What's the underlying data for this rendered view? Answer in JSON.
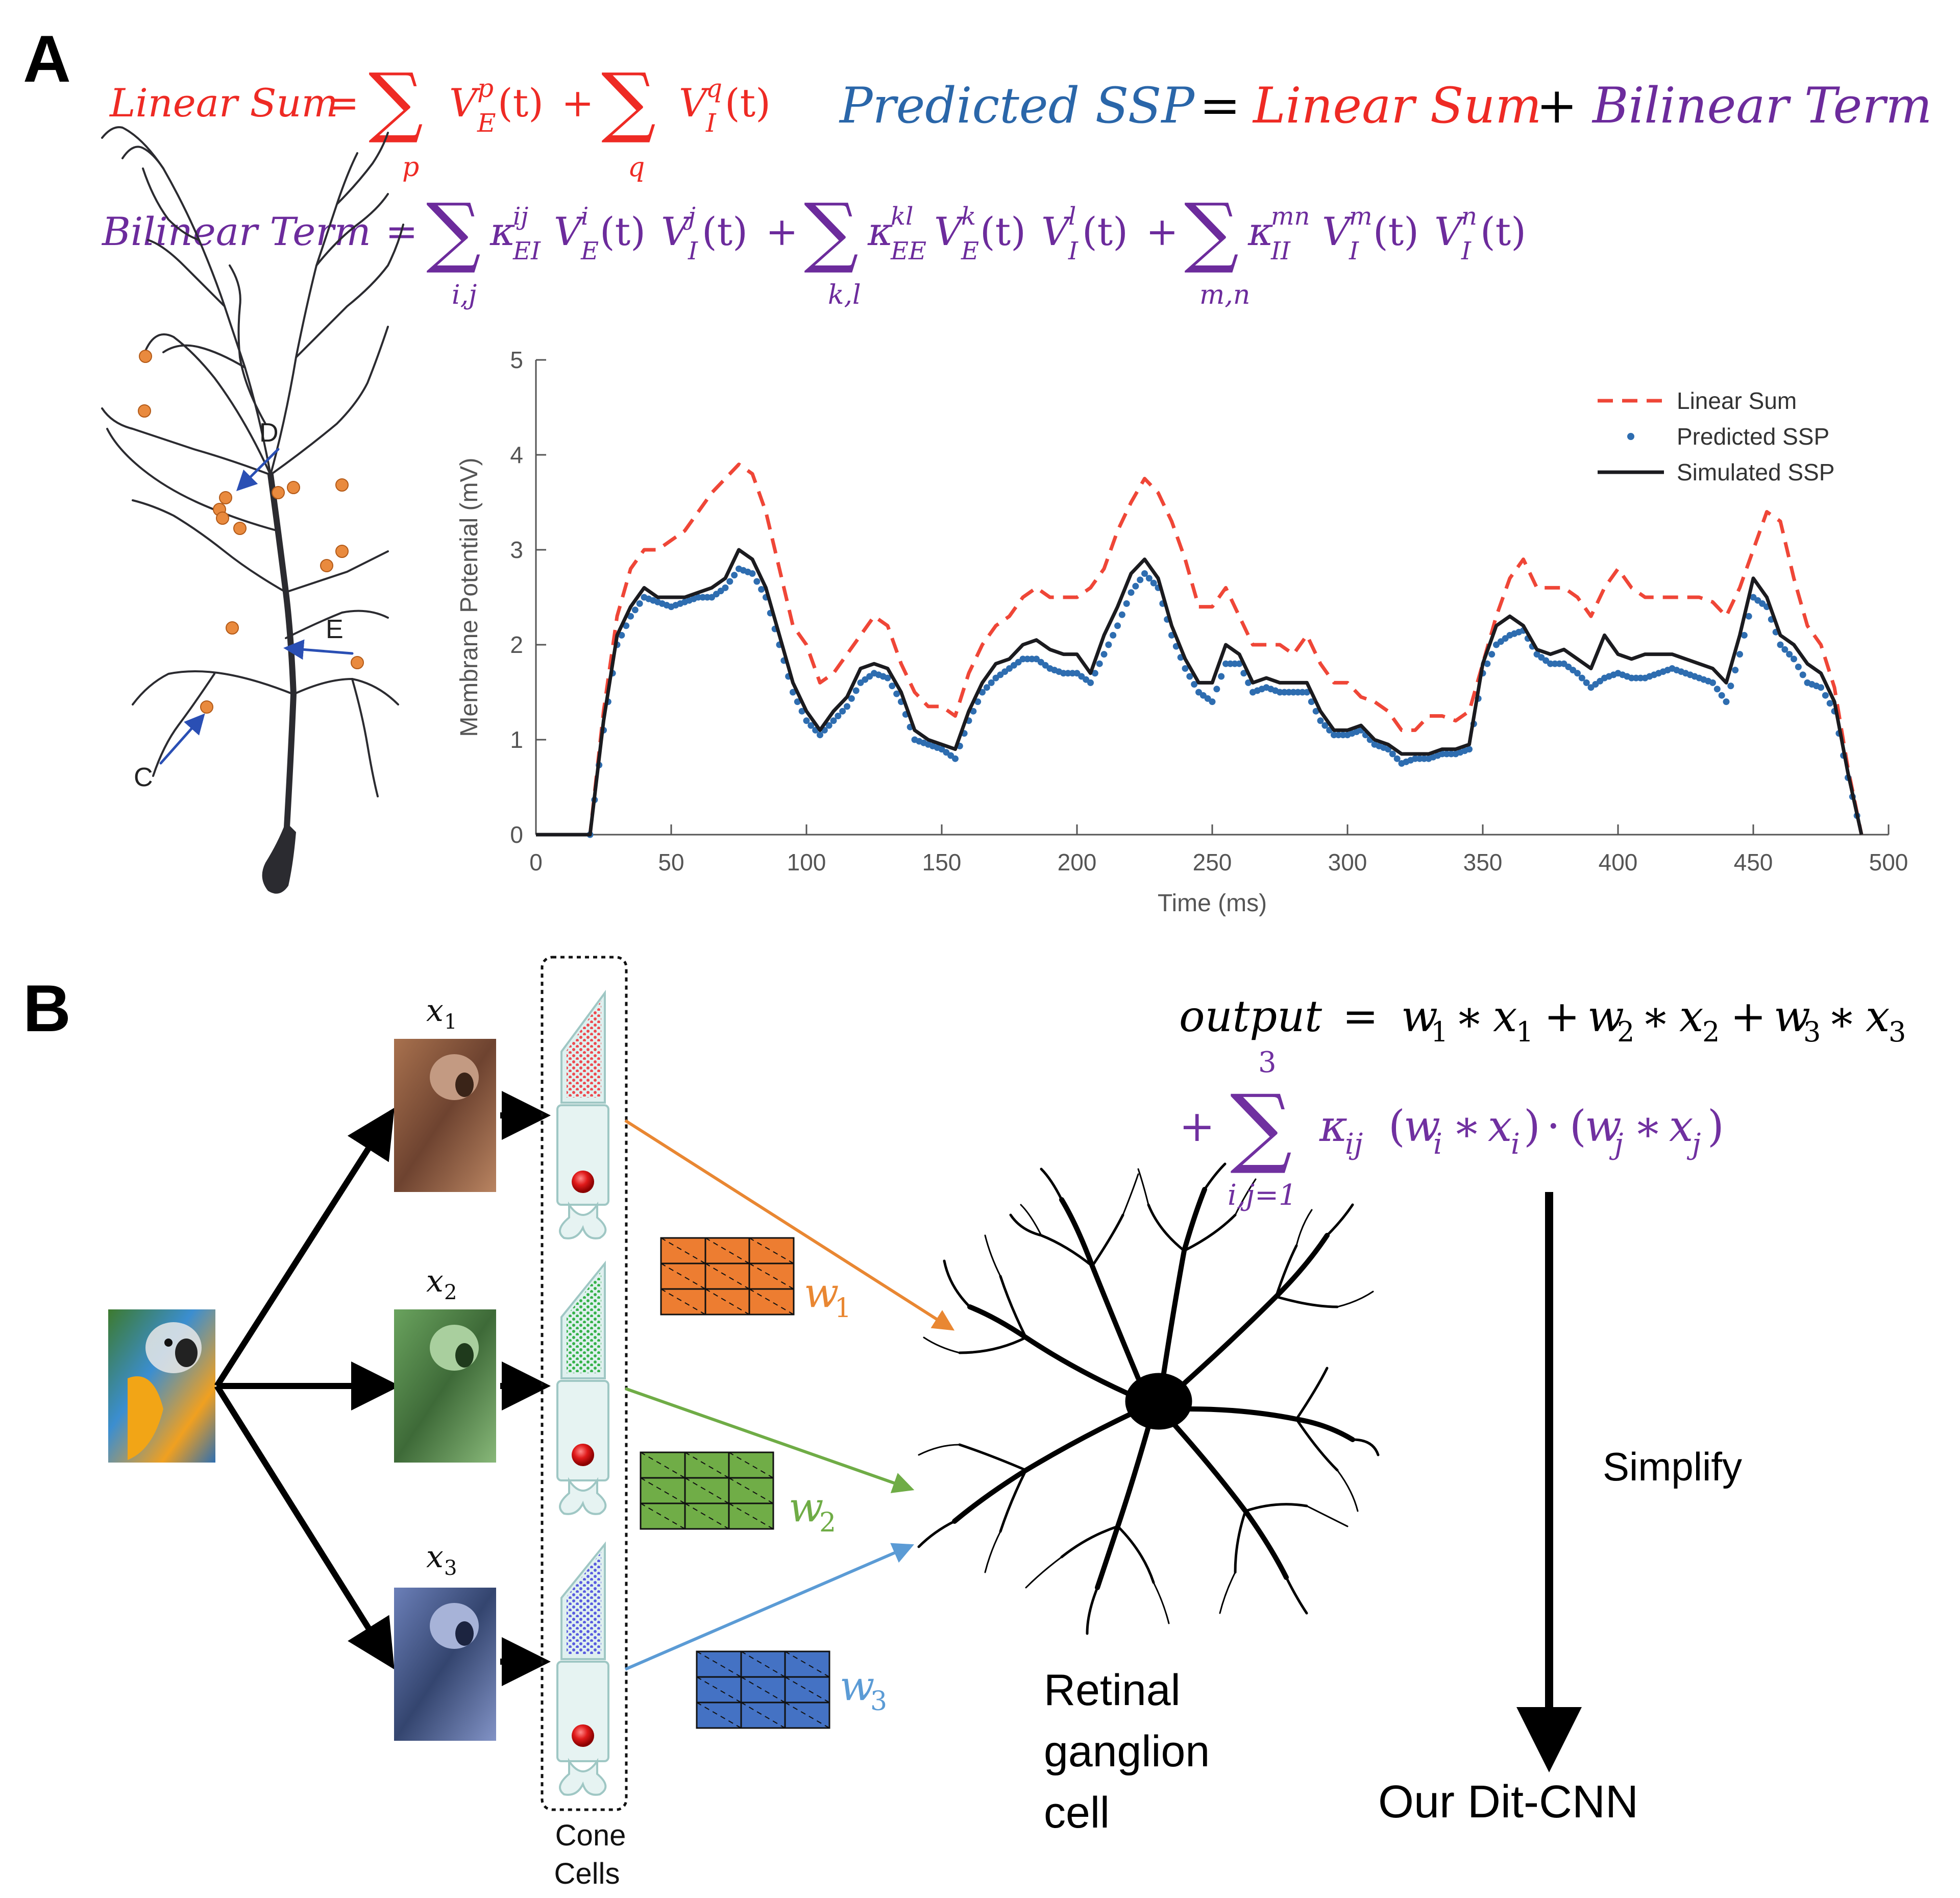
{
  "panel_a": {
    "letter": "A",
    "eq_linear": {
      "lhs": "Linear Sum",
      "eq": "=",
      "s1_sub": "p",
      "s2_sub": "q",
      "t1": "V",
      "t1_sub": "E",
      "t1_sup": "p",
      "t1_arg": "(t)",
      "plus": "+",
      "t2": "V",
      "t2_sub": "I",
      "t2_sup": "q",
      "t2_arg": "(t)"
    },
    "eq_predicted": {
      "a": "Predicted SSP",
      "eq": "=",
      "b": "Linear Sum",
      "plus": "+",
      "c": "Bilinear Term"
    },
    "eq_bilinear": {
      "lhs": "Bilinear Term",
      "eq": "=",
      "s1_sub": "i,j",
      "s2_sub": "k,l",
      "s3_sub": "m,n",
      "k1": "κ",
      "k1_sup": "ij",
      "k1_sub": "EI",
      "k2": "κ",
      "k2_sup": "kl",
      "k2_sub": "EE",
      "k3": "κ",
      "k3_sup": "mn",
      "k3_sub": "II",
      "v": "V",
      "E": "E",
      "I": "I",
      "t": "(t)",
      "i": "i",
      "j": "j",
      "k": "k",
      "l": "l",
      "m": "m",
      "n": "n",
      "plus": "+"
    },
    "neuron_labels": [
      "D",
      "E",
      "C"
    ],
    "colors": {
      "red": "#ee2a24",
      "blue": "#2a66a9",
      "purple": "#6c2b9c",
      "orange": "#e98a3e",
      "arrow": "#2a4fb4"
    }
  },
  "chart_data": {
    "type": "line",
    "xlabel": "Time (ms)",
    "ylabel": "Membrane Potential (mV)",
    "xlim": [
      0,
      500
    ],
    "ylim": [
      0,
      5
    ],
    "xticks": [
      0,
      50,
      100,
      150,
      200,
      250,
      300,
      350,
      400,
      450,
      500
    ],
    "yticks": [
      0,
      1,
      2,
      3,
      4,
      5
    ],
    "grid": false,
    "legend_position": "top-right",
    "x": [
      0,
      20,
      25,
      30,
      35,
      40,
      45,
      50,
      55,
      60,
      65,
      70,
      75,
      80,
      85,
      90,
      95,
      100,
      105,
      110,
      115,
      120,
      125,
      130,
      135,
      140,
      145,
      150,
      155,
      160,
      165,
      170,
      175,
      180,
      185,
      190,
      195,
      200,
      205,
      210,
      215,
      220,
      225,
      230,
      235,
      240,
      245,
      250,
      255,
      260,
      265,
      270,
      275,
      280,
      285,
      290,
      295,
      300,
      305,
      310,
      315,
      320,
      325,
      330,
      335,
      340,
      345,
      350,
      355,
      360,
      365,
      370,
      375,
      380,
      385,
      390,
      395,
      400,
      405,
      410,
      415,
      420,
      425,
      430,
      435,
      440,
      445,
      450,
      455,
      460,
      465,
      470,
      475,
      480,
      485,
      490
    ],
    "series": [
      {
        "name": "Linear Sum",
        "style": "dashed",
        "color": "#ef4637",
        "values": [
          0,
          0,
          1.3,
          2.3,
          2.8,
          3.0,
          3.0,
          3.1,
          3.2,
          3.4,
          3.6,
          3.75,
          3.9,
          3.8,
          3.4,
          2.8,
          2.2,
          2.0,
          1.6,
          1.7,
          1.9,
          2.1,
          2.3,
          2.2,
          1.8,
          1.5,
          1.35,
          1.35,
          1.25,
          1.7,
          2.0,
          2.2,
          2.3,
          2.5,
          2.6,
          2.5,
          2.5,
          2.5,
          2.6,
          2.8,
          3.2,
          3.5,
          3.75,
          3.6,
          3.3,
          2.9,
          2.4,
          2.4,
          2.6,
          2.3,
          2.0,
          2.0,
          2.0,
          1.9,
          2.1,
          1.8,
          1.6,
          1.6,
          1.45,
          1.4,
          1.3,
          1.1,
          1.1,
          1.25,
          1.25,
          1.2,
          1.3,
          1.8,
          2.3,
          2.7,
          2.9,
          2.6,
          2.6,
          2.6,
          2.5,
          2.3,
          2.6,
          2.8,
          2.6,
          2.5,
          2.5,
          2.5,
          2.5,
          2.5,
          2.45,
          2.3,
          2.6,
          3.0,
          3.4,
          3.3,
          2.7,
          2.2,
          2.0,
          1.55,
          0.7,
          0
        ]
      },
      {
        "name": "Predicted SSP",
        "style": "dotted",
        "color": "#2e6db0",
        "values": [
          0,
          0,
          1.1,
          2.0,
          2.3,
          2.5,
          2.45,
          2.4,
          2.45,
          2.5,
          2.5,
          2.6,
          2.8,
          2.75,
          2.5,
          2.0,
          1.5,
          1.2,
          1.05,
          1.2,
          1.35,
          1.6,
          1.7,
          1.65,
          1.4,
          1.0,
          0.95,
          0.9,
          0.8,
          1.2,
          1.5,
          1.65,
          1.75,
          1.85,
          1.85,
          1.75,
          1.7,
          1.7,
          1.6,
          1.9,
          2.2,
          2.55,
          2.75,
          2.6,
          2.1,
          1.75,
          1.5,
          1.4,
          1.8,
          1.8,
          1.5,
          1.55,
          1.5,
          1.5,
          1.5,
          1.2,
          1.05,
          1.05,
          1.1,
          0.95,
          0.9,
          0.75,
          0.8,
          0.8,
          0.85,
          0.85,
          0.9,
          1.7,
          2.0,
          2.1,
          2.15,
          1.9,
          1.8,
          1.8,
          1.7,
          1.55,
          1.65,
          1.7,
          1.65,
          1.65,
          1.7,
          1.75,
          1.7,
          1.65,
          1.6,
          1.4,
          1.9,
          2.5,
          2.4,
          2.0,
          1.85,
          1.6,
          1.55,
          1.3,
          0.6,
          0
        ]
      },
      {
        "name": "Simulated SSP",
        "style": "solid",
        "color": "#1b1b1f",
        "values": [
          0,
          0,
          1.2,
          2.1,
          2.4,
          2.6,
          2.5,
          2.5,
          2.5,
          2.55,
          2.6,
          2.7,
          3.0,
          2.9,
          2.6,
          2.1,
          1.6,
          1.3,
          1.1,
          1.3,
          1.45,
          1.75,
          1.8,
          1.75,
          1.5,
          1.1,
          1.0,
          0.95,
          0.9,
          1.3,
          1.6,
          1.8,
          1.85,
          2.0,
          2.05,
          1.95,
          1.9,
          1.9,
          1.7,
          2.1,
          2.4,
          2.75,
          2.9,
          2.7,
          2.2,
          1.85,
          1.6,
          1.6,
          2.0,
          1.9,
          1.6,
          1.65,
          1.6,
          1.6,
          1.6,
          1.3,
          1.1,
          1.1,
          1.15,
          1.0,
          0.95,
          0.85,
          0.85,
          0.85,
          0.9,
          0.9,
          0.95,
          1.8,
          2.2,
          2.3,
          2.2,
          1.95,
          1.9,
          1.95,
          1.85,
          1.75,
          2.1,
          1.9,
          1.85,
          1.9,
          1.9,
          1.9,
          1.85,
          1.8,
          1.75,
          1.6,
          2.1,
          2.7,
          2.5,
          2.1,
          2.0,
          1.8,
          1.7,
          1.4,
          0.65,
          0
        ]
      }
    ]
  },
  "panel_b": {
    "letter": "B",
    "inputs": [
      {
        "sym": "x",
        "sub": "1"
      },
      {
        "sym": "x",
        "sub": "2"
      },
      {
        "sym": "x",
        "sub": "3"
      }
    ],
    "weights": [
      {
        "sym": "w",
        "sub": "1",
        "color": "#e98732"
      },
      {
        "sym": "w",
        "sub": "2",
        "color": "#6fac46"
      },
      {
        "sym": "w",
        "sub": "3",
        "color": "#5b9bd5"
      }
    ],
    "cone_label": "Cone Cells",
    "cone_label_line1": "Cone",
    "cone_label_line2": "Cells",
    "cone_colors": {
      "red": "#ee4a50",
      "green": "#36b24a",
      "blue": "#5a5ce0"
    },
    "rgc_label_line1": "Retinal",
    "rgc_label_line2": "ganglion",
    "rgc_label_line3": "cell",
    "eq_output": {
      "lhs": "output",
      "eq": "=",
      "w": "w",
      "x": "x",
      "star": "∗",
      "plus": "+",
      "n1": "1",
      "n2": "2",
      "n3": "3"
    },
    "eq_sum": {
      "plus": "+",
      "upper": "3",
      "lower": "i,j=1",
      "kappa": "κ",
      "ij": "ij",
      "open": "(",
      "close": ")",
      "w": "w",
      "x": "x",
      "star": "∗",
      "dot": "·",
      "i": "i",
      "j": "j"
    },
    "simplify_label": "Simplify",
    "result_label": "Our Dit-CNN",
    "purple": "#7030a0"
  }
}
